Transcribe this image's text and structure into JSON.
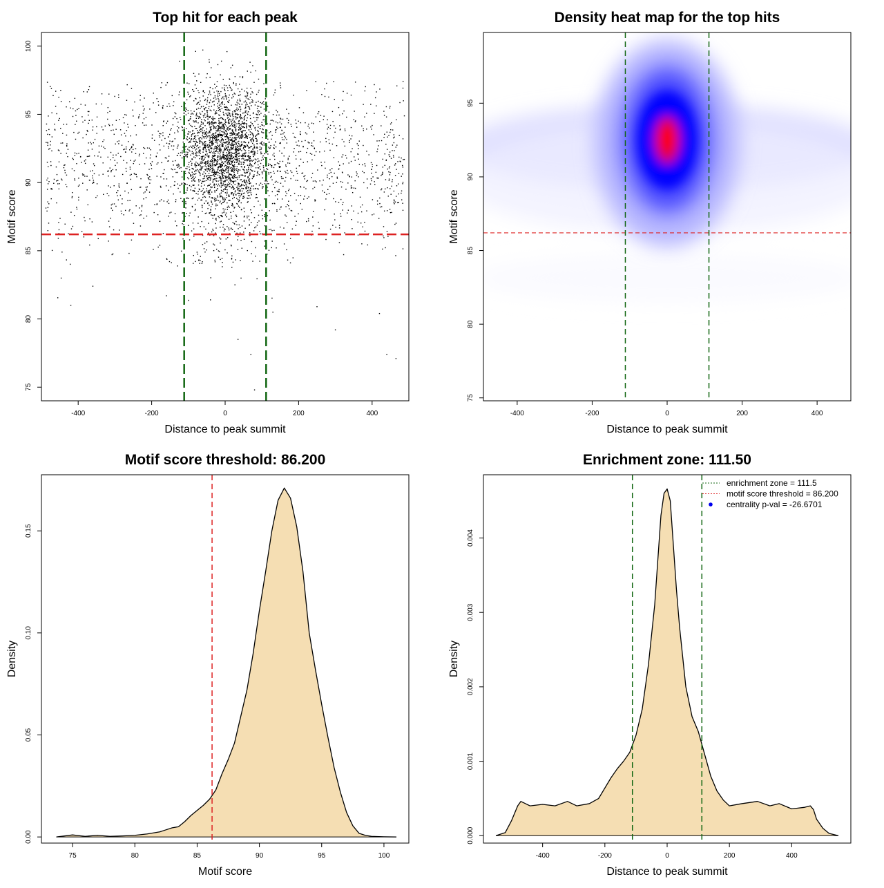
{
  "colors": {
    "threshold_line": "#dd2222",
    "zone_line": "#116611",
    "density_fill": "#f5deb3",
    "heat_low": "#ffffff",
    "heat_mid": "#0000ff",
    "heat_high": "#ff0000",
    "points": "#000000"
  },
  "chart_data": [
    {
      "id": "scatter",
      "type": "scatter",
      "title": "Top hit for each peak",
      "xlabel": "Distance to peak summit",
      "ylabel": "Motif score",
      "xlim": [
        -500,
        500
      ],
      "ylim": [
        74,
        101
      ],
      "xticks": [
        -400,
        -200,
        0,
        200,
        400
      ],
      "yticks": [
        75,
        80,
        85,
        90,
        95,
        100
      ],
      "threshold": 86.2,
      "enrichment_zone": 111.5,
      "outliers": [
        [
          -420,
          81.0
        ],
        [
          -360,
          82.4
        ],
        [
          -160,
          81.7
        ],
        [
          -40,
          81.4
        ],
        [
          35,
          78.5
        ],
        [
          70,
          77.4
        ],
        [
          80,
          74.8
        ],
        [
          130,
          80.5
        ],
        [
          250,
          80.9
        ],
        [
          300,
          79.2
        ],
        [
          420,
          80.4
        ],
        [
          440,
          77.4
        ],
        [
          465,
          77.1
        ],
        [
          5,
          99.6
        ],
        [
          -10,
          98.9
        ],
        [
          20,
          98.6
        ]
      ],
      "grid": false,
      "legend": "none"
    },
    {
      "id": "heatmap",
      "type": "heatmap",
      "title": "Density heat map for the top hits",
      "xlabel": "Distance to peak summit",
      "ylabel": "Motif score",
      "xlim": [
        -490,
        490
      ],
      "ylim": [
        74.8,
        99.8
      ],
      "xticks": [
        -400,
        -200,
        0,
        200,
        400
      ],
      "yticks": [
        75,
        80,
        85,
        90,
        95
      ],
      "threshold": 86.2,
      "enrichment_zone": 111.5,
      "peak": {
        "x": 0,
        "y": 92.5
      },
      "grid": false,
      "legend": "none"
    },
    {
      "id": "score-density",
      "type": "area",
      "title": "Motif score threshold: 86.200",
      "xlabel": "Motif score",
      "ylabel": "Density",
      "xlim": [
        72.5,
        102
      ],
      "ylim": [
        -0.003,
        0.1775
      ],
      "xticks": [
        75,
        80,
        85,
        90,
        95,
        100
      ],
      "yticks": [
        0.0,
        0.05,
        0.1,
        0.15
      ],
      "ytick_labels": [
        "0.00",
        "0.05",
        "0.10",
        "0.15"
      ],
      "threshold": 86.2,
      "x": [
        73.7,
        75.0,
        76.0,
        77.0,
        78.0,
        79.0,
        80.0,
        81.0,
        82.0,
        82.5,
        83.0,
        83.5,
        84.0,
        84.5,
        85.0,
        85.5,
        86.0,
        86.5,
        87.0,
        87.5,
        88.0,
        88.5,
        89.0,
        89.5,
        90.0,
        90.5,
        91.0,
        91.5,
        92.0,
        92.5,
        93.0,
        93.5,
        94.0,
        94.5,
        95.0,
        95.5,
        96.0,
        96.5,
        97.0,
        97.5,
        98.0,
        98.5,
        99.0,
        100.0,
        101.0
      ],
      "y": [
        0.0,
        0.001,
        0.0003,
        0.0008,
        0.0003,
        0.0005,
        0.0008,
        0.0015,
        0.0025,
        0.0035,
        0.0045,
        0.005,
        0.0075,
        0.0105,
        0.013,
        0.0155,
        0.0185,
        0.023,
        0.031,
        0.038,
        0.046,
        0.059,
        0.072,
        0.09,
        0.111,
        0.13,
        0.15,
        0.165,
        0.171,
        0.166,
        0.152,
        0.13,
        0.1,
        0.082,
        0.065,
        0.049,
        0.034,
        0.022,
        0.012,
        0.0055,
        0.0018,
        0.0008,
        0.0003,
        0.0001,
        0.0
      ],
      "grid": false,
      "legend": "none"
    },
    {
      "id": "position-density",
      "type": "area",
      "title": "Enrichment zone: 111.50",
      "xlabel": "Distance to peak summit",
      "ylabel": "Density",
      "xlim": [
        -590,
        590
      ],
      "ylim": [
        -0.0001,
        0.00485
      ],
      "xticks": [
        -400,
        -200,
        0,
        200,
        400
      ],
      "yticks": [
        0.0,
        0.001,
        0.002,
        0.003,
        0.004
      ],
      "ytick_labels": [
        "0.000",
        "0.001",
        "0.002",
        "0.003",
        "0.004"
      ],
      "enrichment_zone": 111.5,
      "x": [
        -550,
        -520,
        -500,
        -480,
        -470,
        -460,
        -440,
        -400,
        -360,
        -320,
        -290,
        -250,
        -220,
        -180,
        -160,
        -140,
        -120,
        -100,
        -80,
        -60,
        -40,
        -30,
        -20,
        -10,
        0,
        10,
        20,
        30,
        40,
        60,
        80,
        100,
        120,
        140,
        160,
        180,
        200,
        240,
        290,
        330,
        360,
        400,
        440,
        460,
        470,
        480,
        500,
        520,
        550
      ],
      "y": [
        0.0,
        4e-05,
        0.0002,
        0.0004,
        0.00046,
        0.00044,
        0.0004,
        0.00042,
        0.0004,
        0.00046,
        0.0004,
        0.00043,
        0.0005,
        0.00078,
        0.0009,
        0.001,
        0.00112,
        0.00135,
        0.0017,
        0.0023,
        0.0031,
        0.0037,
        0.0043,
        0.0046,
        0.00466,
        0.0045,
        0.0039,
        0.0033,
        0.0028,
        0.002,
        0.0016,
        0.0014,
        0.0011,
        0.0008,
        0.0006,
        0.00048,
        0.0004,
        0.00043,
        0.00046,
        0.0004,
        0.00043,
        0.00036,
        0.00038,
        0.0004,
        0.00035,
        0.00022,
        0.0001,
        3e-05,
        0.0
      ],
      "legend": "top-right",
      "legend_items": [
        {
          "label": "enrichment zone = 111.5",
          "style": "dotted-line",
          "color": "#116611"
        },
        {
          "label": "motif score threshold = 86.200",
          "style": "dotted-line",
          "color": "#dd2222"
        },
        {
          "label": "centrality p-val = -26.6701",
          "style": "point",
          "color": "#0000ee"
        }
      ],
      "grid": false
    }
  ]
}
